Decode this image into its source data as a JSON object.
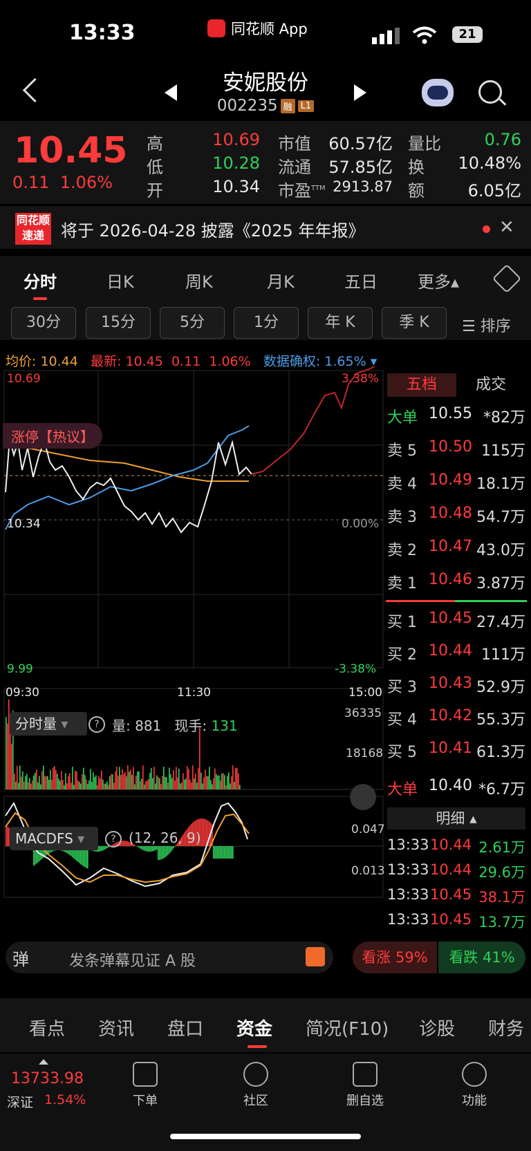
{
  "status": {
    "time": "13:33",
    "app": "同花顺 App",
    "battery": "21"
  },
  "header": {
    "name": "安妮股份",
    "code": "002235",
    "tag1": "融",
    "tag2": "L1"
  },
  "quote": {
    "price": "10.45",
    "change": "0.11",
    "change_pct": "1.06%",
    "high_label": "高",
    "high": "10.69",
    "low_label": "低",
    "low": "10.28",
    "open_label": "开",
    "open": "10.34",
    "mcap_label": "市值",
    "mcap": "60.57亿",
    "float_label": "流通",
    "float": "57.85亿",
    "pe_label": "市盈",
    "pe_sup": "TTM",
    "pe": "2913.87",
    "vr_label": "量比",
    "vr": "0.76",
    "turn_label": "换",
    "turn": "10.48%",
    "amt_label": "额",
    "amt": "6.05亿"
  },
  "news": {
    "logo1": "同花顺",
    "logo2": "速递",
    "text": "将于 2026-04-28 披露《2025 年年报》"
  },
  "tabs": [
    "分时",
    "日K",
    "周K",
    "月K",
    "五日",
    "更多▴"
  ],
  "sub_buttons": [
    "30分",
    "15分",
    "5分",
    "1分",
    "年 K",
    "季 K"
  ],
  "sort_label": "☰ 排序",
  "info": {
    "avg_label": "均价:",
    "avg": "10.44",
    "last_label": "最新:",
    "last": "10.45",
    "chg": "0.11",
    "pct": "1.06%",
    "adj_label": "数据确权:",
    "adj": "1.65%"
  },
  "chart": {
    "y_top": "10.69",
    "y_mid": "10.34",
    "y_bot": "9.99",
    "pct_top": "3.38%",
    "pct_mid": "0.00%",
    "pct_bot": "-3.38%",
    "x_start": "09:30",
    "x_mid": "11:30",
    "x_end": "15:00",
    "badge": "涨停【热议】"
  },
  "volume": {
    "label": "分时量",
    "vol_label": "量:",
    "vol": "881",
    "hand_label": "现手:",
    "hand": "131",
    "max": "36335",
    "mid": "18168"
  },
  "macd": {
    "label": "MACDFS",
    "params": "(12, 26, 9)",
    "top": "0.047",
    "mid": "0.013"
  },
  "orderbook": {
    "tab_active": "五档",
    "tab_other": "成交",
    "big_sell": {
      "label": "大单",
      "price": "10.55",
      "vol": "*82万"
    },
    "asks": [
      {
        "label": "卖 5",
        "price": "10.50",
        "vol": "115万"
      },
      {
        "label": "卖 4",
        "price": "10.49",
        "vol": "18.1万"
      },
      {
        "label": "卖 3",
        "price": "10.48",
        "vol": "54.7万"
      },
      {
        "label": "卖 2",
        "price": "10.47",
        "vol": "43.0万"
      },
      {
        "label": "卖 1",
        "price": "10.46",
        "vol": "3.87万"
      }
    ],
    "bids": [
      {
        "label": "买 1",
        "price": "10.45",
        "vol": "27.4万"
      },
      {
        "label": "买 2",
        "price": "10.44",
        "vol": "111万"
      },
      {
        "label": "买 3",
        "price": "10.43",
        "vol": "52.9万"
      },
      {
        "label": "买 4",
        "price": "10.42",
        "vol": "55.3万"
      },
      {
        "label": "买 5",
        "price": "10.41",
        "vol": "61.3万"
      }
    ],
    "big_buy": {
      "label": "大单",
      "price": "10.40",
      "vol": "*6.7万"
    },
    "detail_title": "明细 ▴",
    "details": [
      {
        "time": "13:33",
        "price": "10.44",
        "vol": "2.61万"
      },
      {
        "time": "13:33",
        "price": "10.44",
        "vol": "29.6万"
      },
      {
        "time": "13:33",
        "price": "10.45",
        "vol": "38.1万"
      },
      {
        "time": "13:33",
        "price": "10.45",
        "vol": "13.7万"
      }
    ]
  },
  "danmu": {
    "icon": "弹",
    "placeholder": "发条弹幕见证 A 股",
    "bull": "看涨 59%",
    "bear": "看跌 41%"
  },
  "bottom_tabs": [
    "看点",
    "资讯",
    "盘口",
    "资金",
    "简况(F10)",
    "诊股",
    "财务"
  ],
  "index": {
    "value": "13733.98",
    "name": "深证",
    "pct": "1.54%"
  },
  "nav": [
    "下单",
    "社区",
    "删自选",
    "功能"
  ]
}
